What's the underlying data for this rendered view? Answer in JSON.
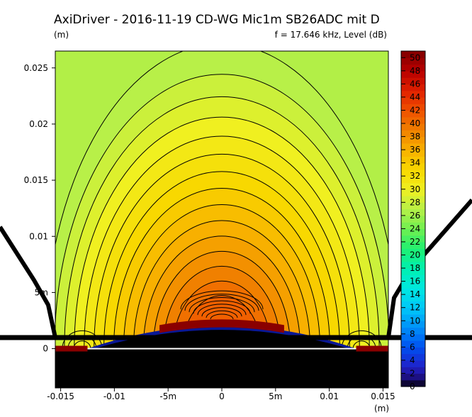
{
  "chart_data": {
    "type": "heatmap",
    "title": "AxiDriver - 2016-11-19 CD-WG Mic1m SB26ADC mit D",
    "ylabel": "(m)",
    "xlabel": "(m)",
    "subtitle": "f = 17.646 kHz, Level  (dB)",
    "xlim": [
      -0.0155,
      0.0155
    ],
    "ylim": [
      -0.0035,
      0.0265
    ],
    "x_ticks": [
      {
        "value": -0.015,
        "label": "-0.015"
      },
      {
        "value": -0.01,
        "label": "-0.01"
      },
      {
        "value": -0.005,
        "label": "-5m"
      },
      {
        "value": 0,
        "label": "0"
      },
      {
        "value": 0.005,
        "label": "5m"
      },
      {
        "value": 0.01,
        "label": "0.01"
      },
      {
        "value": 0.015,
        "label": "0.015"
      }
    ],
    "y_ticks": [
      {
        "value": 0.025,
        "label": "0.025"
      },
      {
        "value": 0.02,
        "label": "0.02"
      },
      {
        "value": 0.015,
        "label": "0.015"
      },
      {
        "value": 0.01,
        "label": "0.01"
      },
      {
        "value": 0.005,
        "label": "5m"
      },
      {
        "value": 0,
        "label": "0"
      }
    ],
    "colorbar": {
      "min": 0,
      "max": 51,
      "levels": [
        0,
        2,
        4,
        6,
        8,
        10,
        12,
        14,
        16,
        18,
        20,
        22,
        24,
        26,
        28,
        30,
        32,
        34,
        36,
        38,
        40,
        42,
        44,
        46,
        48,
        50
      ],
      "level_labels": [
        "0",
        "2",
        "4",
        "6",
        "8",
        "10",
        "12",
        "14",
        "16",
        "18",
        "20",
        "22",
        "24",
        "26",
        "28",
        "30",
        "32",
        "34",
        "36",
        "38",
        "40",
        "42",
        "44",
        "46",
        "48",
        "50"
      ]
    },
    "field": {
      "peak_level_db": 41,
      "edge_level_db": 27,
      "contour_step_db": 1
    },
    "colors": {
      "driver_body": "#000000",
      "diaphragm_surface": "#0a1896",
      "surround_highlight": "#8a0000",
      "axis_line": "#ffffff"
    }
  }
}
